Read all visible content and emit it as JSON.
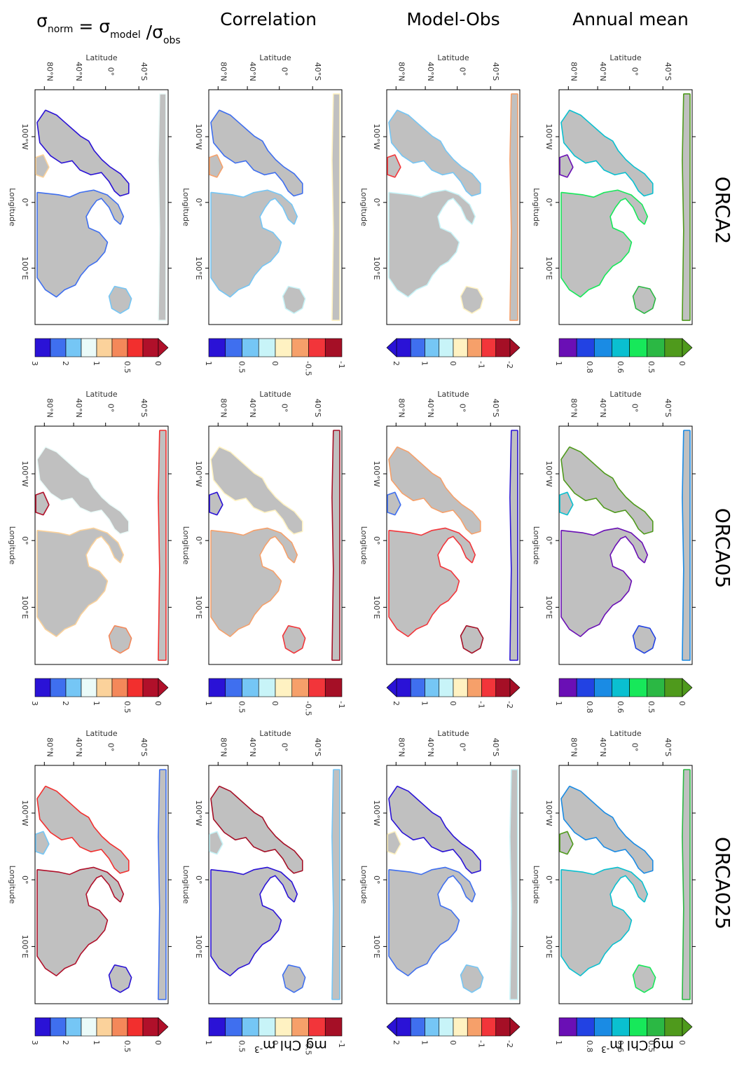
{
  "column_titles": {
    "sigma": {
      "prefix": "σ",
      "norm": "norm",
      "eq": " = σ",
      "model": "model",
      "slash": " /σ",
      "obs": "obs"
    },
    "correlation": "Correlation",
    "model_obs": "Model-Obs",
    "annual_mean": "Annual mean"
  },
  "row_titles": [
    "ORCA2",
    "ORCA05",
    "ORCA025"
  ],
  "axis_labels": {
    "latitude": "Latitude",
    "longitude": "Longitude",
    "lat_ticks": [
      "40°S",
      "0°",
      "40°N",
      "80°N"
    ],
    "lon_ticks": [
      "100°W",
      "0°",
      "100°E"
    ]
  },
  "colorbars": {
    "sigma": {
      "ticks": [
        "0",
        "0.5",
        "1",
        "2",
        "3"
      ],
      "colors": [
        "#2a12d6",
        "#3f6fef",
        "#75c6f5",
        "#ebfbf9",
        "#fbd29b",
        "#f4885a",
        "#f22f2e",
        "#b0102a"
      ]
    },
    "correlation": {
      "ticks": [
        "-1",
        "-0.5",
        "0",
        "0.5",
        "1"
      ],
      "colors": [
        "#2a12d6",
        "#3f6fef",
        "#75c6f5",
        "#c8f4f8",
        "#fff2c2",
        "#f6a06a",
        "#f2353a",
        "#a50f26"
      ]
    },
    "model_obs": {
      "ticks": [
        "-2",
        "-1",
        "0",
        "1",
        "2"
      ],
      "colors": [
        "#2a12d6",
        "#3f6fef",
        "#75c6f5",
        "#c8f4f8",
        "#fff2c2",
        "#f6a06a",
        "#f2353a",
        "#a50f26"
      ]
    },
    "annual_mean": {
      "ticks": [
        "0",
        "0.5",
        "0.6",
        "0.8",
        "1"
      ],
      "colors": [
        "#6a0fb5",
        "#2242e3",
        "#1a8be4",
        "#0ac0d0",
        "#17e85a",
        "#2bb844",
        "#4f9a1c"
      ]
    }
  },
  "units": {
    "prefix": "mg Chl m",
    "exponent": "-3"
  },
  "colors": {
    "land": "#c0c0c0",
    "ocean": "#ffffff"
  }
}
